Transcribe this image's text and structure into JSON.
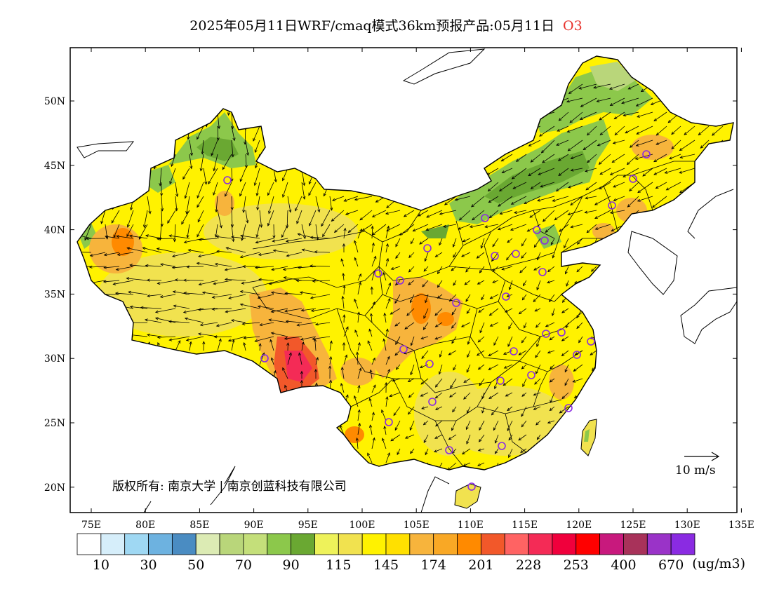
{
  "title": {
    "text": "2025年05月11日WRF/cmaq模式36km预报产品:05月11日",
    "pollutant": "O3"
  },
  "axes": {
    "lon_labels": [
      "75E",
      "80E",
      "85E",
      "90E",
      "95E",
      "100E",
      "105E",
      "110E",
      "115E",
      "120E",
      "125E",
      "130E",
      "135E"
    ],
    "lat_labels": [
      "50N",
      "45N",
      "40N",
      "35N",
      "30N",
      "25N",
      "20N"
    ]
  },
  "copyright": "版权所有: 南京大学 | 南京创蓝科技有限公司",
  "wind_scale_label": "10 m/s",
  "legend": {
    "unit": "(ug/m3)",
    "labels": [
      "10",
      "30",
      "50",
      "70",
      "90",
      "115",
      "145",
      "174",
      "201",
      "228",
      "253",
      "400",
      "670"
    ],
    "colors": [
      "#ffffff",
      "#d6eefa",
      "#9fd8f3",
      "#6db2e0",
      "#4a8cc2",
      "#dcebb4",
      "#b9d67a",
      "#c4df7a",
      "#8cc84b",
      "#6aa832",
      "#eef25a",
      "#f1e24f",
      "#fff200",
      "#ffe000",
      "#f7b43c",
      "#f9a825",
      "#ff8a00",
      "#f2582a",
      "#ff6363",
      "#f42b56",
      "#f0003c",
      "#ff0000",
      "#c8197d",
      "#a8325a",
      "#9a33c8",
      "#8a2be2"
    ]
  },
  "cities": [
    {
      "name": "urumqi"
    },
    {
      "name": "lhasa"
    },
    {
      "name": "xining"
    },
    {
      "name": "lanzhou"
    },
    {
      "name": "yinchuan"
    },
    {
      "name": "hohhot"
    },
    {
      "name": "beijing"
    },
    {
      "name": "tianjin"
    },
    {
      "name": "shijiazhuang"
    },
    {
      "name": "taiyuan"
    },
    {
      "name": "jinan"
    },
    {
      "name": "zhengzhou"
    },
    {
      "name": "xian"
    },
    {
      "name": "chengdu"
    },
    {
      "name": "chongqing"
    },
    {
      "name": "wuhan"
    },
    {
      "name": "hefei"
    },
    {
      "name": "nanjing"
    },
    {
      "name": "shanghai"
    },
    {
      "name": "hangzhou"
    },
    {
      "name": "nanchang"
    },
    {
      "name": "changsha"
    },
    {
      "name": "guiyang"
    },
    {
      "name": "kunming"
    },
    {
      "name": "nanning"
    },
    {
      "name": "guangzhou"
    },
    {
      "name": "fuzhou"
    },
    {
      "name": "haikou"
    },
    {
      "name": "shenyang"
    },
    {
      "name": "changchun"
    },
    {
      "name": "harbin"
    }
  ]
}
